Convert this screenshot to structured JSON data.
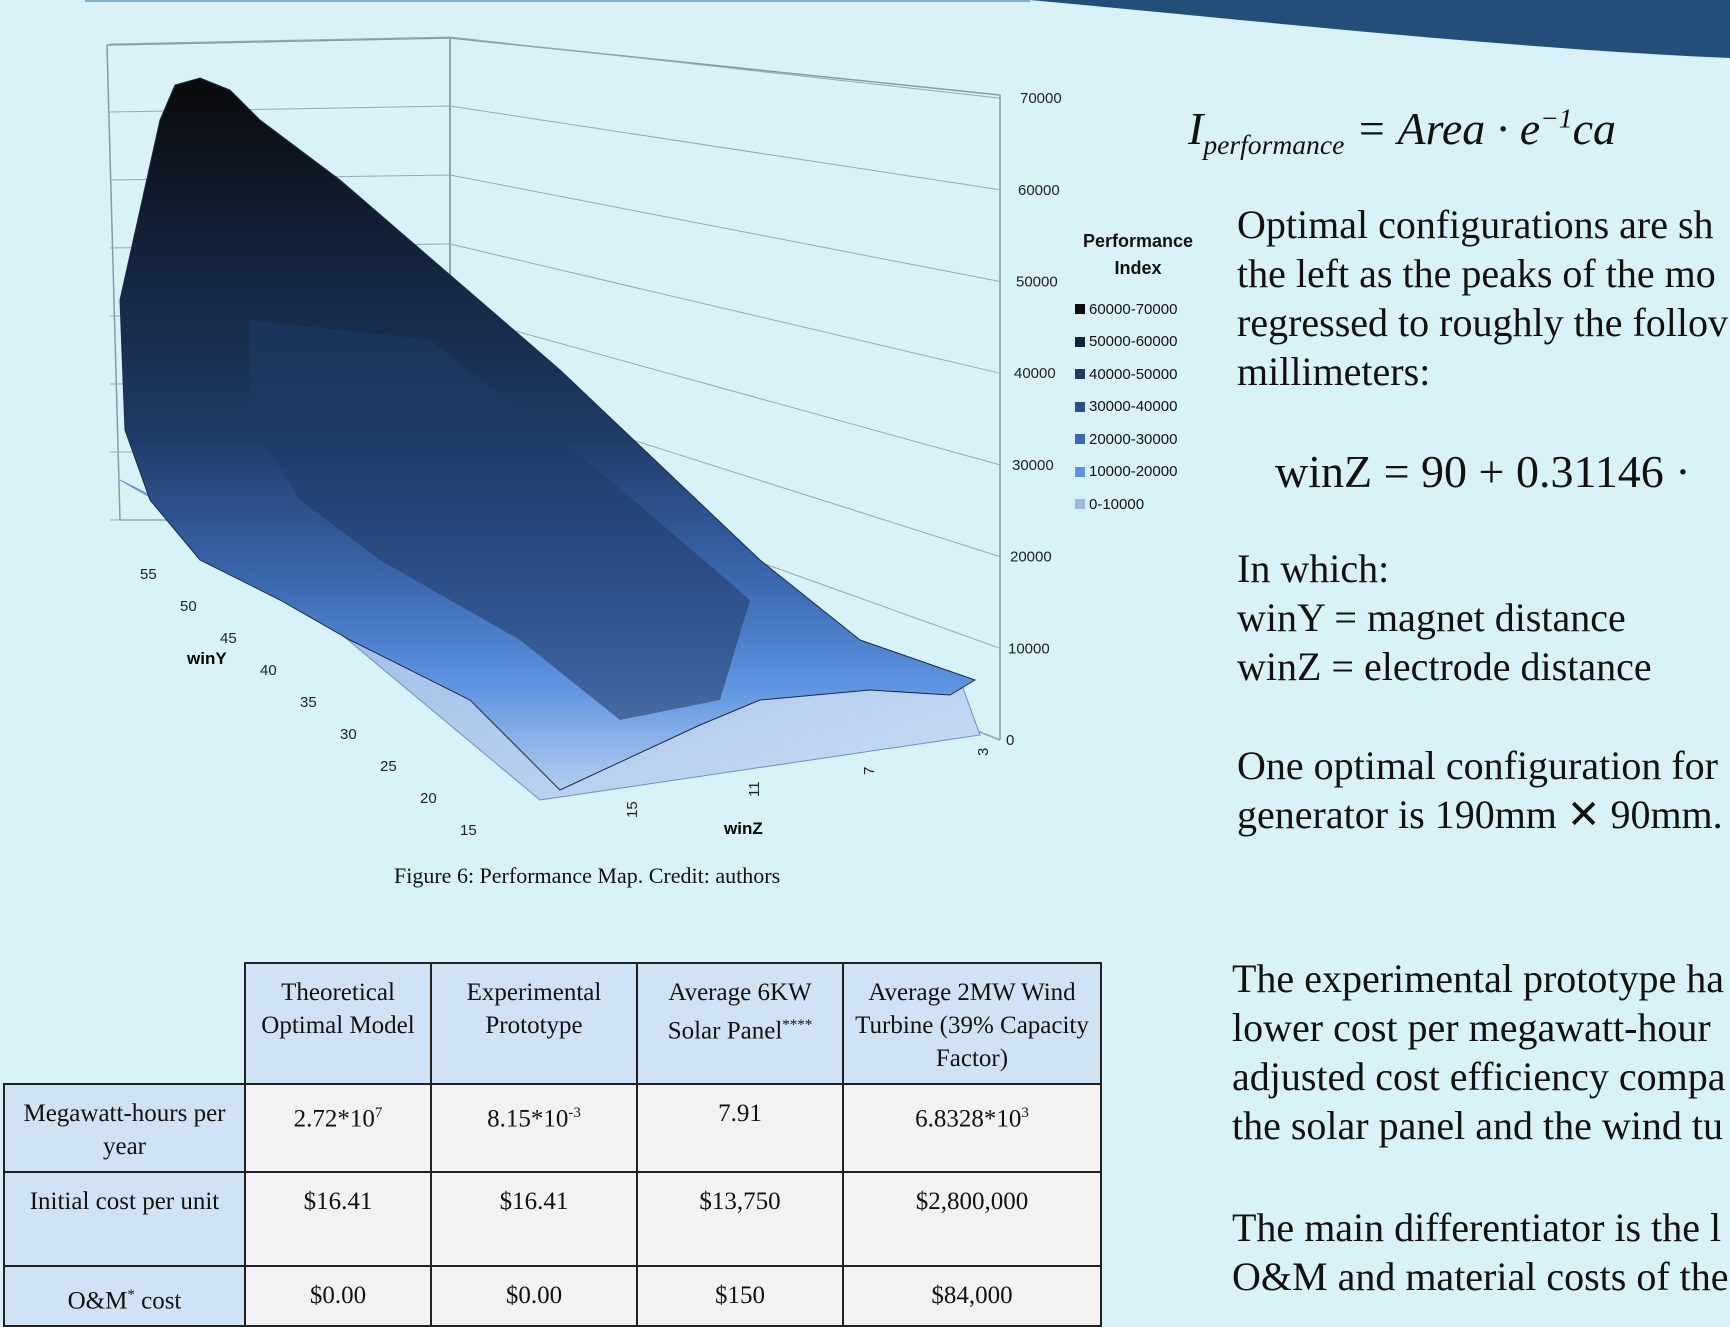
{
  "chart_data": {
    "type": "surface3d",
    "title": "",
    "xlabel": "winZ",
    "ylabel": "winY",
    "zlim": [
      0,
      70000
    ],
    "z_ticks": [
      "0",
      "10000",
      "20000",
      "30000",
      "40000",
      "50000",
      "60000",
      "70000"
    ],
    "winY_ticks": [
      "15",
      "20",
      "25",
      "30",
      "35",
      "40",
      "45",
      "50",
      "55"
    ],
    "winZ_ticks": [
      "15",
      "11",
      "7",
      "3"
    ],
    "legend_title": "Performance Index",
    "legend": [
      {
        "label": "60000-70000",
        "color": "#0d0d0d"
      },
      {
        "label": "50000-60000",
        "color": "#13233d"
      },
      {
        "label": "40000-50000",
        "color": "#1f3b66"
      },
      {
        "label": "30000-40000",
        "color": "#2b4f85"
      },
      {
        "label": "20000-30000",
        "color": "#3a67ad"
      },
      {
        "label": "10000-20000",
        "color": "#5c92e0"
      },
      {
        "label": "0-10000",
        "color": "#9db9e6"
      }
    ],
    "grid": true,
    "legend_position": "right"
  },
  "figure_caption": "Figure 6: Performance Map. Credit: authors",
  "right_text": {
    "eq1": "I_performance = Area · e^−1 ca",
    "para1": [
      "Optimal configurations are sh",
      "the left as the peaks of the mo",
      "regressed to roughly the follov",
      "millimeters:"
    ],
    "eq2": "winZ = 90 + 0.31146 ·",
    "para2": [
      "In which:",
      "winY = magnet distance",
      "winZ = electrode distance"
    ],
    "para3": [
      "One optimal configuration for",
      "generator is 190mm ✕ 90mm."
    ],
    "para4": [
      "The experimental prototype ha",
      "lower cost per megawatt-hour",
      "adjusted cost efficiency compa",
      "the solar panel and the wind tu"
    ],
    "para5": [
      "The main differentiator is the l",
      "O&M and material costs of the"
    ]
  },
  "table": {
    "headers": [
      "Theoretical Optimal Model",
      "Experimental Prototype",
      "Average 6KW Solar Panel****",
      "Average 2MW Wind Turbine (39% Capacity Factor)"
    ],
    "rows": [
      {
        "label": "Megawatt-hours per year",
        "values": [
          "2.72*10^7",
          "8.15*10^-3",
          "7.91",
          "6.8328*10^3"
        ]
      },
      {
        "label": "Initial cost per unit",
        "values": [
          "$16.41",
          "$16.41",
          "$13,750",
          "$2,800,000"
        ]
      },
      {
        "label": "O&M* cost",
        "values": [
          "$0.00",
          "$0.00",
          "$150",
          "$84,000"
        ]
      }
    ]
  }
}
